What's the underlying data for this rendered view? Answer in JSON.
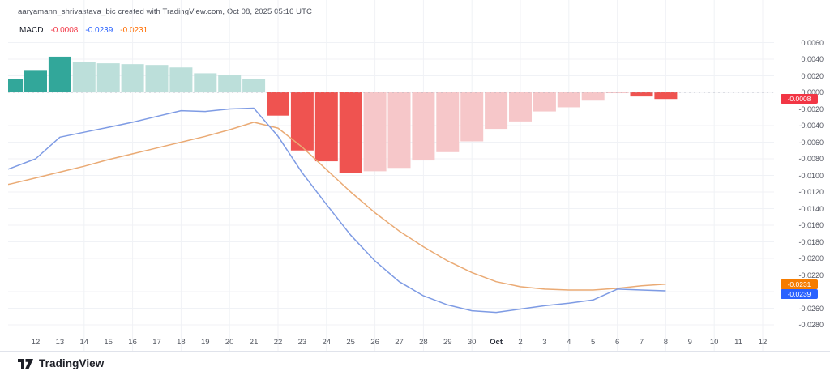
{
  "meta": {
    "attribution": "aaryamann_shrivastava_bic created with TradingView.com, Oct 08, 2025 05:16 UTC"
  },
  "legend": {
    "label": "MACD",
    "histogram_value": "-0.0008",
    "macd_value": "-0.0239",
    "signal_value": "-0.0231"
  },
  "footer": {
    "brand": "TradingView"
  },
  "colors": {
    "hist_grow_above": "#32a79a",
    "hist_fall_above": "#bcdfda",
    "hist_fall_below": "#ef5350",
    "hist_rise_below": "#f6c7c9",
    "macd_line": "#7e9be4",
    "signal_line": "#eaaa74",
    "legend_hist": "#f23645",
    "legend_macd": "#2962ff",
    "legend_signal": "#ff6d00",
    "badge_hist_bg": "#f23645",
    "badge_signal_bg": "#f57c00",
    "badge_macd_bg": "#2962ff",
    "grid": "#f0f2f6",
    "zero_line": "#a8adba",
    "separator": "#e0e3eb"
  },
  "chart_data": {
    "type": "bar",
    "subtype": "macd-indicator (histogram bars + MACD line + signal line)",
    "title": "MACD",
    "xlabel": "",
    "ylabel": "",
    "ylim": [
      -0.028,
      0.006
    ],
    "y_tick_step": 0.002,
    "grid": "on (faint)",
    "zero_line": "dashed horizontal at 0.0000",
    "legend_position": "top-left values only",
    "categories": [
      "Sep 11",
      "Sep 12",
      "Sep 13",
      "Sep 14",
      "Sep 15",
      "Sep 16",
      "Sep 17",
      "Sep 18",
      "Sep 19",
      "Sep 20",
      "Sep 21",
      "Sep 22",
      "Sep 23",
      "Sep 24",
      "Sep 25",
      "Sep 26",
      "Sep 27",
      "Sep 28",
      "Sep 29",
      "Sep 30",
      "Oct 1",
      "Oct 2",
      "Oct 3",
      "Oct 4",
      "Oct 5",
      "Oct 6",
      "Oct 7",
      "Oct 8"
    ],
    "series": [
      {
        "name": "Histogram",
        "type": "bar",
        "values": [
          0.0016,
          0.0026,
          0.0043,
          0.0037,
          0.0035,
          0.0034,
          0.0033,
          0.003,
          0.0023,
          0.0021,
          0.0016,
          -0.0028,
          -0.007,
          -0.0083,
          -0.0097,
          -0.0095,
          -0.0091,
          -0.0082,
          -0.0072,
          -0.0059,
          -0.0044,
          -0.0035,
          -0.0023,
          -0.0018,
          -0.001,
          -0.0001,
          -0.0005,
          -0.0008
        ]
      },
      {
        "name": "MACD",
        "type": "line",
        "values": [
          -0.0091,
          -0.008,
          -0.0054,
          -0.0048,
          -0.0042,
          -0.0036,
          -0.0029,
          -0.0022,
          -0.0023,
          -0.002,
          -0.0019,
          -0.0053,
          -0.0097,
          -0.0135,
          -0.0172,
          -0.0203,
          -0.0228,
          -0.0245,
          -0.0256,
          -0.0263,
          -0.0265,
          -0.0261,
          -0.0257,
          -0.0254,
          -0.025,
          -0.0237,
          -0.0238,
          -0.0239
        ]
      },
      {
        "name": "Signal",
        "type": "line",
        "values": [
          -0.011,
          -0.0103,
          -0.0096,
          -0.0089,
          -0.0081,
          -0.0074,
          -0.0067,
          -0.006,
          -0.0053,
          -0.0045,
          -0.0036,
          -0.0043,
          -0.0066,
          -0.0093,
          -0.012,
          -0.0145,
          -0.0167,
          -0.0186,
          -0.0203,
          -0.0217,
          -0.0228,
          -0.0234,
          -0.0237,
          -0.0238,
          -0.0238,
          -0.0236,
          -0.0233,
          -0.0231
        ]
      }
    ],
    "x_axis_labels": [
      "12",
      "13",
      "14",
      "15",
      "16",
      "17",
      "18",
      "19",
      "20",
      "21",
      "22",
      "23",
      "24",
      "25",
      "26",
      "27",
      "28",
      "29",
      "30",
      "Oct",
      "2",
      "3",
      "4",
      "5",
      "6",
      "7",
      "8",
      "9",
      "10",
      "11",
      "12"
    ],
    "y_axis_labels": [
      "0.0060",
      "0.0040",
      "0.0020",
      "0.0000",
      "-0.0020",
      "-0.0040",
      "-0.0060",
      "-0.0080",
      "-0.0100",
      "-0.0120",
      "-0.0140",
      "-0.0160",
      "-0.0180",
      "-0.0200",
      "-0.0220",
      "-0.0260",
      "-0.0280"
    ]
  },
  "axis_badges": [
    {
      "id": "histogram",
      "text": "-0.0008",
      "value": -0.0008
    },
    {
      "id": "signal",
      "text": "-0.0231",
      "value": -0.0231
    },
    {
      "id": "macd",
      "text": "-0.0239",
      "value": -0.0239
    }
  ]
}
